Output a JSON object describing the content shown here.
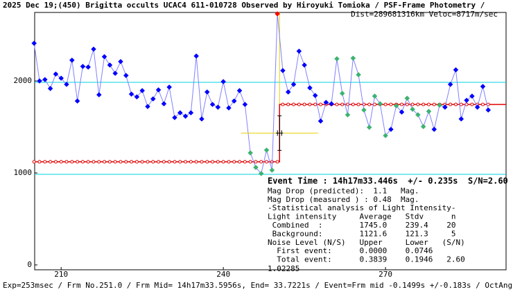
{
  "chart_data": {
    "type": "scatter",
    "title": "2025 Dec 19;(450) Brigitta occults UCAC4 611-010728 Observed by Hiroyuki Tomioka / PSF-Frame Photometry /",
    "subtitle": "Dist=289681316km Veloc=8717m/sec",
    "footer": "Exp=253msec / Frm No.251.0 / Frm Mid= 14h17m33.5956s, End= 33.7221s / Event=Frm mid -0.1499s +/-0.183s / OctAngle=0.0deg",
    "x_annotation": "1.02285",
    "info_lines": [
      "Event Time : 14h17m33.446s  +/- 0.235s  S/N=2.60",
      "Mag Drop (predicted):  1.1   Mag.",
      "Mag Drop (measured ) : 0.48  Mag.",
      "-Statistical analysis of Light Intensity-",
      "Light intensity     Average   Stdv      n",
      " Combined  :        1745.0    239.4    20",
      " Background:        1121.6    121.3     5",
      "Noise Level (N/S)   Upper     Lower   (S/N)",
      "  First event:      0.0000    0.0746",
      "  Total event:      0.3839    0.1946   2.60"
    ],
    "x": [
      205,
      206,
      207,
      208,
      209,
      210,
      211,
      212,
      213,
      214,
      215,
      216,
      217,
      218,
      219,
      220,
      221,
      222,
      223,
      224,
      225,
      226,
      227,
      228,
      229,
      230,
      231,
      232,
      233,
      234,
      235,
      236,
      237,
      238,
      239,
      240,
      241,
      242,
      243,
      244,
      245,
      246,
      247,
      248,
      249,
      250,
      251,
      252,
      253,
      254,
      255,
      256,
      257,
      258,
      259,
      260,
      261,
      262,
      263,
      264,
      265,
      266,
      267,
      268,
      269,
      270,
      271,
      272,
      273,
      274,
      275,
      276,
      277,
      278,
      279,
      280,
      281,
      282,
      283,
      284,
      285,
      286,
      287,
      288,
      289
    ],
    "values": [
      2410,
      2000,
      2015,
      1918,
      2075,
      2030,
      1963,
      2226,
      1782,
      2158,
      2151,
      2346,
      1850,
      2264,
      2173,
      2083,
      2211,
      2060,
      1857,
      1827,
      1895,
      1722,
      1805,
      1903,
      1752,
      1933,
      1602,
      1654,
      1617,
      1654,
      2271,
      1587,
      1880,
      1745,
      1715,
      1993,
      1707,
      1782,
      1895,
      1745,
      1218,
      1060,
      993,
      1248,
      1030,
      2730,
      2113,
      1880,
      1963,
      2324,
      2173,
      1925,
      1842,
      1564,
      1767,
      1752,
      2241,
      1865,
      1632,
      2248,
      2068,
      1684,
      1496,
      1835,
      1752,
      1406,
      1474,
      1730,
      1662,
      1812,
      1692,
      1632,
      1504,
      1669,
      1474,
      1737,
      1715,
      1963,
      2121,
      1587,
      1790,
      1835,
      1715,
      1940,
      1684
    ],
    "point_colors": [
      "#0000ff",
      "#0000ff",
      "#0000ff",
      "#0000ff",
      "#0000ff",
      "#0000ff",
      "#0000ff",
      "#0000ff",
      "#0000ff",
      "#0000ff",
      "#0000ff",
      "#0000ff",
      "#0000ff",
      "#0000ff",
      "#0000ff",
      "#0000ff",
      "#0000ff",
      "#0000ff",
      "#0000ff",
      "#0000ff",
      "#0000ff",
      "#0000ff",
      "#0000ff",
      "#0000ff",
      "#0000ff",
      "#0000ff",
      "#0000ff",
      "#0000ff",
      "#0000ff",
      "#0000ff",
      "#0000ff",
      "#0000ff",
      "#0000ff",
      "#0000ff",
      "#0000ff",
      "#0000ff",
      "#0000ff",
      "#0000ff",
      "#0000ff",
      "#0000ff",
      "#3cb371",
      "#3cb371",
      "#3cb371",
      "#3cb371",
      "#3cb371",
      "#ff0000",
      "#0000ff",
      "#0000ff",
      "#0000ff",
      "#0000ff",
      "#0000ff",
      "#0000ff",
      "#0000ff",
      "#0000ff",
      "#0000ff",
      "#0000ff",
      "#3cb371",
      "#3cb371",
      "#3cb371",
      "#3cb371",
      "#3cb371",
      "#3cb371",
      "#3cb371",
      "#3cb371",
      "#3cb371",
      "#3cb371",
      "#0000ff",
      "#3cb371",
      "#0000ff",
      "#3cb371",
      "#3cb371",
      "#3cb371",
      "#3cb371",
      "#3cb371",
      "#0000ff",
      "#3cb371",
      "#0000ff",
      "#0000ff",
      "#0000ff",
      "#0000ff",
      "#0000ff",
      "#0000ff",
      "#0000ff",
      "#0000ff",
      "#0000ff"
    ],
    "line_color": "#8080ff",
    "model": {
      "before": 1121.6,
      "after": 1745.0,
      "step_x": 250.4,
      "color": "#e00000"
    },
    "reference_lines": [
      1985,
      985
    ],
    "reference_color": "#00d0e0",
    "event_error": {
      "x": 250.4,
      "xerr": 4.6,
      "y": 1433,
      "color": "#e8d000"
    },
    "xlim": [
      205.1,
      292.3
    ],
    "ylim": [
      -53,
      2745
    ],
    "xticks": [
      210,
      240,
      270
    ],
    "yticks": [
      0,
      1000,
      2000
    ]
  }
}
